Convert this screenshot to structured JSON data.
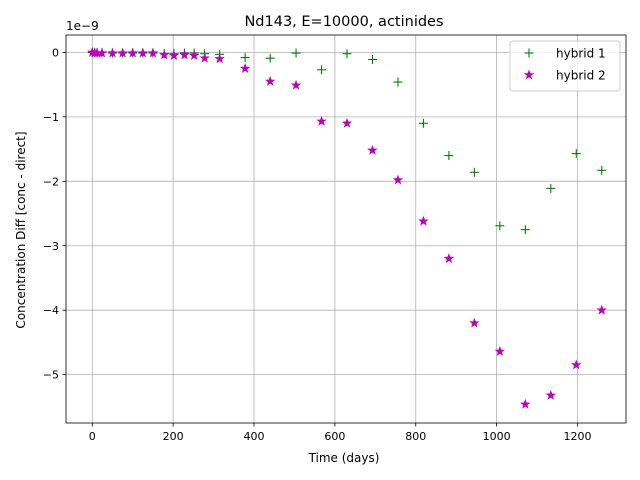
{
  "chart_data": {
    "type": "scatter",
    "title": "Nd143, E=10000, actinides",
    "xlabel": "Time (days)",
    "ylabel": "Concentration Diff [conc - direct]",
    "y_scale_label": "1e−9",
    "xlim": [
      -65,
      1320
    ],
    "ylim": [
      -5.75,
      0.27
    ],
    "xticks": [
      0,
      200,
      400,
      600,
      800,
      1000,
      1200
    ],
    "xtick_labels": [
      "0",
      "200",
      "400",
      "600",
      "800",
      "1000",
      "1200"
    ],
    "yticks": [
      0,
      -1,
      -2,
      -3,
      -4,
      -5
    ],
    "ytick_labels": [
      "0",
      "−1",
      "−2",
      "−3",
      "−4",
      "−5"
    ],
    "grid": true,
    "legend_position": "upper right",
    "series": [
      {
        "name": "hybrid 1",
        "marker": "+",
        "color": "#008000",
        "points": [
          [
            0,
            0.0
          ],
          [
            6,
            0.0
          ],
          [
            12,
            0.0
          ],
          [
            24,
            0.0
          ],
          [
            50,
            -0.01
          ],
          [
            75,
            -0.01
          ],
          [
            100,
            -0.01
          ],
          [
            125,
            -0.01
          ],
          [
            150,
            -0.01
          ],
          [
            178,
            -0.02
          ],
          [
            202,
            -0.02
          ],
          [
            228,
            -0.01
          ],
          [
            252,
            -0.01
          ],
          [
            278,
            -0.02
          ],
          [
            315,
            -0.03
          ],
          [
            378,
            -0.08
          ],
          [
            440,
            -0.09
          ],
          [
            504,
            -0.01
          ],
          [
            567,
            -0.27
          ],
          [
            630,
            -0.02
          ],
          [
            693,
            -0.11
          ],
          [
            756,
            -0.46
          ],
          [
            819,
            -1.1
          ],
          [
            882,
            -1.6
          ],
          [
            945,
            -1.86
          ],
          [
            1008,
            -2.69
          ],
          [
            1071,
            -2.75
          ],
          [
            1134,
            -2.11
          ],
          [
            1197,
            -1.57
          ],
          [
            1260,
            -1.83
          ]
        ]
      },
      {
        "name": "hybrid 2",
        "marker": "*",
        "color": "#bf00bf",
        "points": [
          [
            0,
            0.0
          ],
          [
            6,
            -0.01
          ],
          [
            12,
            -0.01
          ],
          [
            24,
            -0.01
          ],
          [
            50,
            -0.01
          ],
          [
            75,
            -0.01
          ],
          [
            100,
            -0.01
          ],
          [
            125,
            -0.01
          ],
          [
            150,
            -0.01
          ],
          [
            178,
            -0.04
          ],
          [
            202,
            -0.05
          ],
          [
            228,
            -0.04
          ],
          [
            252,
            -0.05
          ],
          [
            278,
            -0.09
          ],
          [
            315,
            -0.1
          ],
          [
            378,
            -0.25
          ],
          [
            440,
            -0.45
          ],
          [
            504,
            -0.51
          ],
          [
            567,
            -1.07
          ],
          [
            630,
            -1.1
          ],
          [
            693,
            -1.52
          ],
          [
            756,
            -1.98
          ],
          [
            819,
            -2.62
          ],
          [
            882,
            -3.2
          ],
          [
            945,
            -4.2
          ],
          [
            1008,
            -4.64
          ],
          [
            1071,
            -5.46
          ],
          [
            1134,
            -5.32
          ],
          [
            1197,
            -4.85
          ],
          [
            1260,
            -4.0
          ]
        ]
      }
    ]
  }
}
